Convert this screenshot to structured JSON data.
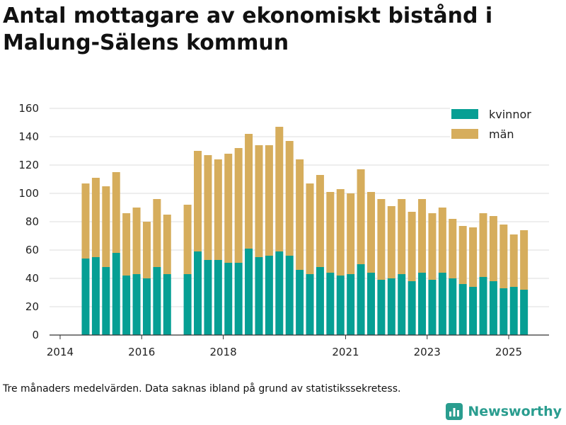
{
  "title": "Antal mottagare av ekonomiskt bistånd i Malung-Sälens kommun",
  "footnote": "Tre månaders medelvärden. Data saknas ibland på grund av statistikssekretess.",
  "brand": "Newsworthy",
  "colors": {
    "kvinnor": "#069f94",
    "man": "#d6ad5c",
    "grid": "#dddddd",
    "axis": "#333333"
  },
  "chart_data": {
    "type": "bar",
    "stacked": true,
    "title": "",
    "xlabel": "",
    "ylabel": "",
    "ylim": [
      0,
      160
    ],
    "yticks": [
      0,
      20,
      40,
      60,
      80,
      100,
      120,
      140,
      160
    ],
    "xticks": [
      "2014",
      "2016",
      "2018",
      "2021",
      "2023",
      "2025"
    ],
    "legend_position": "top-right",
    "grid": true,
    "categories": [
      "2014 Q3",
      "2014 Q4",
      "2015 Q1",
      "2015 Q2",
      "2015 Q3",
      "2015 Q4",
      "2016 Q1",
      "2016 Q2",
      "2016 Q3",
      "2016 Q4",
      "2017 Q1",
      "2017 Q2",
      "2017 Q3",
      "2017 Q4",
      "2018 Q1",
      "2018 Q2",
      "2018 Q3",
      "2018 Q4",
      "2019 Q1",
      "2019 Q2",
      "2019 Q3",
      "2019 Q4",
      "2020 Q1",
      "2020 Q2",
      "2020 Q3",
      "2020 Q4",
      "2021 Q1",
      "2021 Q2",
      "2021 Q3",
      "2021 Q4",
      "2022 Q1",
      "2022 Q2",
      "2022 Q3",
      "2022 Q4",
      "2023 Q1",
      "2023 Q2",
      "2023 Q3",
      "2023 Q4",
      "2024 Q1",
      "2024 Q2",
      "2024 Q3",
      "2024 Q4",
      "2025 Q1",
      "2025 Q2"
    ],
    "series": [
      {
        "name": "kvinnor",
        "values": [
          54,
          55,
          48,
          58,
          42,
          43,
          40,
          48,
          43,
          null,
          43,
          59,
          53,
          53,
          51,
          51,
          61,
          55,
          56,
          59,
          56,
          46,
          43,
          48,
          44,
          42,
          43,
          50,
          44,
          39,
          40,
          43,
          38,
          44,
          39,
          44,
          40,
          36,
          34,
          41,
          38,
          33,
          34,
          32
        ]
      },
      {
        "name": "män",
        "values": [
          53,
          56,
          57,
          57,
          44,
          47,
          40,
          48,
          42,
          null,
          49,
          71,
          74,
          71,
          77,
          81,
          81,
          79,
          78,
          88,
          81,
          78,
          64,
          65,
          57,
          61,
          57,
          67,
          57,
          57,
          51,
          53,
          49,
          52,
          47,
          46,
          42,
          41,
          42,
          45,
          46,
          45,
          37,
          42
        ]
      }
    ]
  }
}
